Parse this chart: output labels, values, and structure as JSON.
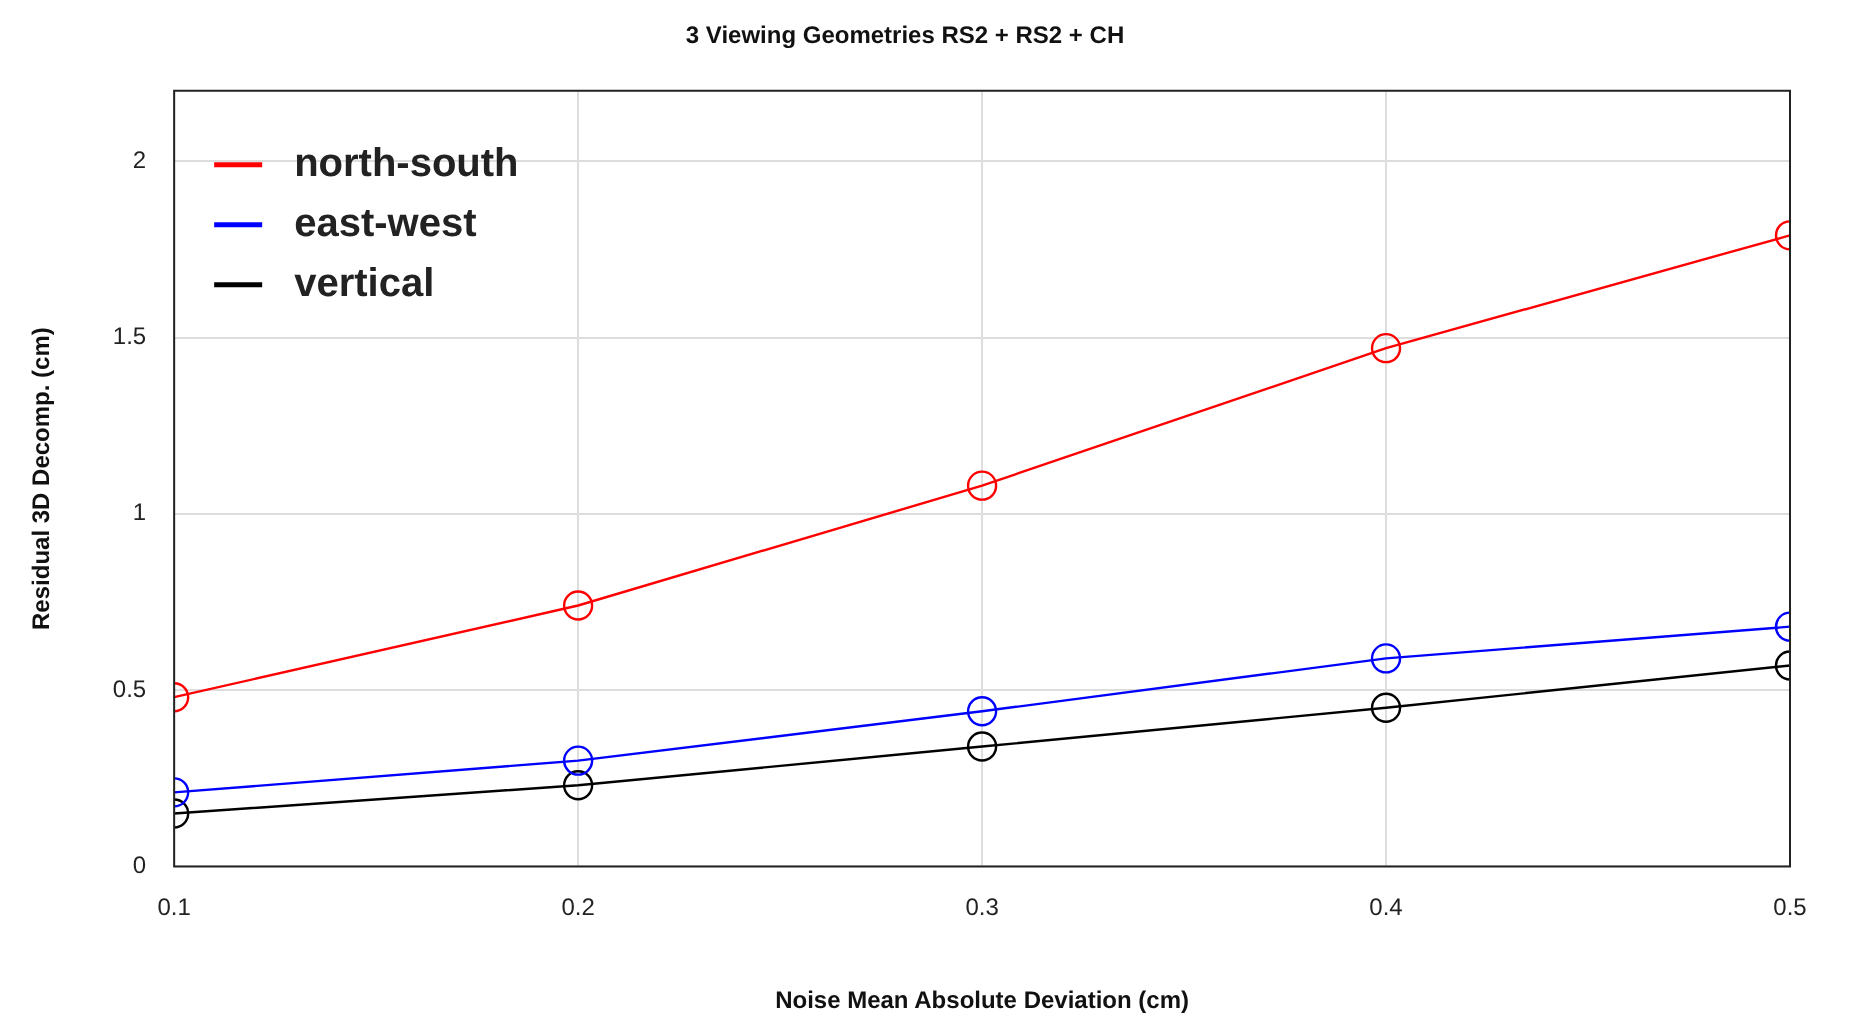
{
  "chart_data": {
    "type": "line",
    "title": "3 Viewing Geometries RS2 + RS2 + CH",
    "xlabel": "Noise Mean Absolute Deviation (cm)",
    "ylabel": "Residual 3D Decomp. (cm)",
    "x": [
      0.1,
      0.2,
      0.3,
      0.4,
      0.5
    ],
    "series": [
      {
        "name": "north-south",
        "color": "#ff0000",
        "values": [
          0.48,
          0.74,
          1.08,
          1.47,
          1.79
        ]
      },
      {
        "name": "east-west",
        "color": "#0000ff",
        "values": [
          0.21,
          0.3,
          0.44,
          0.59,
          0.68
        ]
      },
      {
        "name": "vertical",
        "color": "#000000",
        "values": [
          0.15,
          0.23,
          0.34,
          0.45,
          0.57
        ]
      }
    ],
    "xlim": [
      0.1,
      0.5
    ],
    "xticks": [
      0.1,
      0.2,
      0.3,
      0.4,
      0.5
    ],
    "ylim": [
      0,
      2.2
    ],
    "yticks": [
      0,
      0.5,
      1,
      1.5,
      2
    ],
    "grid": true,
    "legend": "top left",
    "marker": "circle",
    "line_style": "solid"
  }
}
